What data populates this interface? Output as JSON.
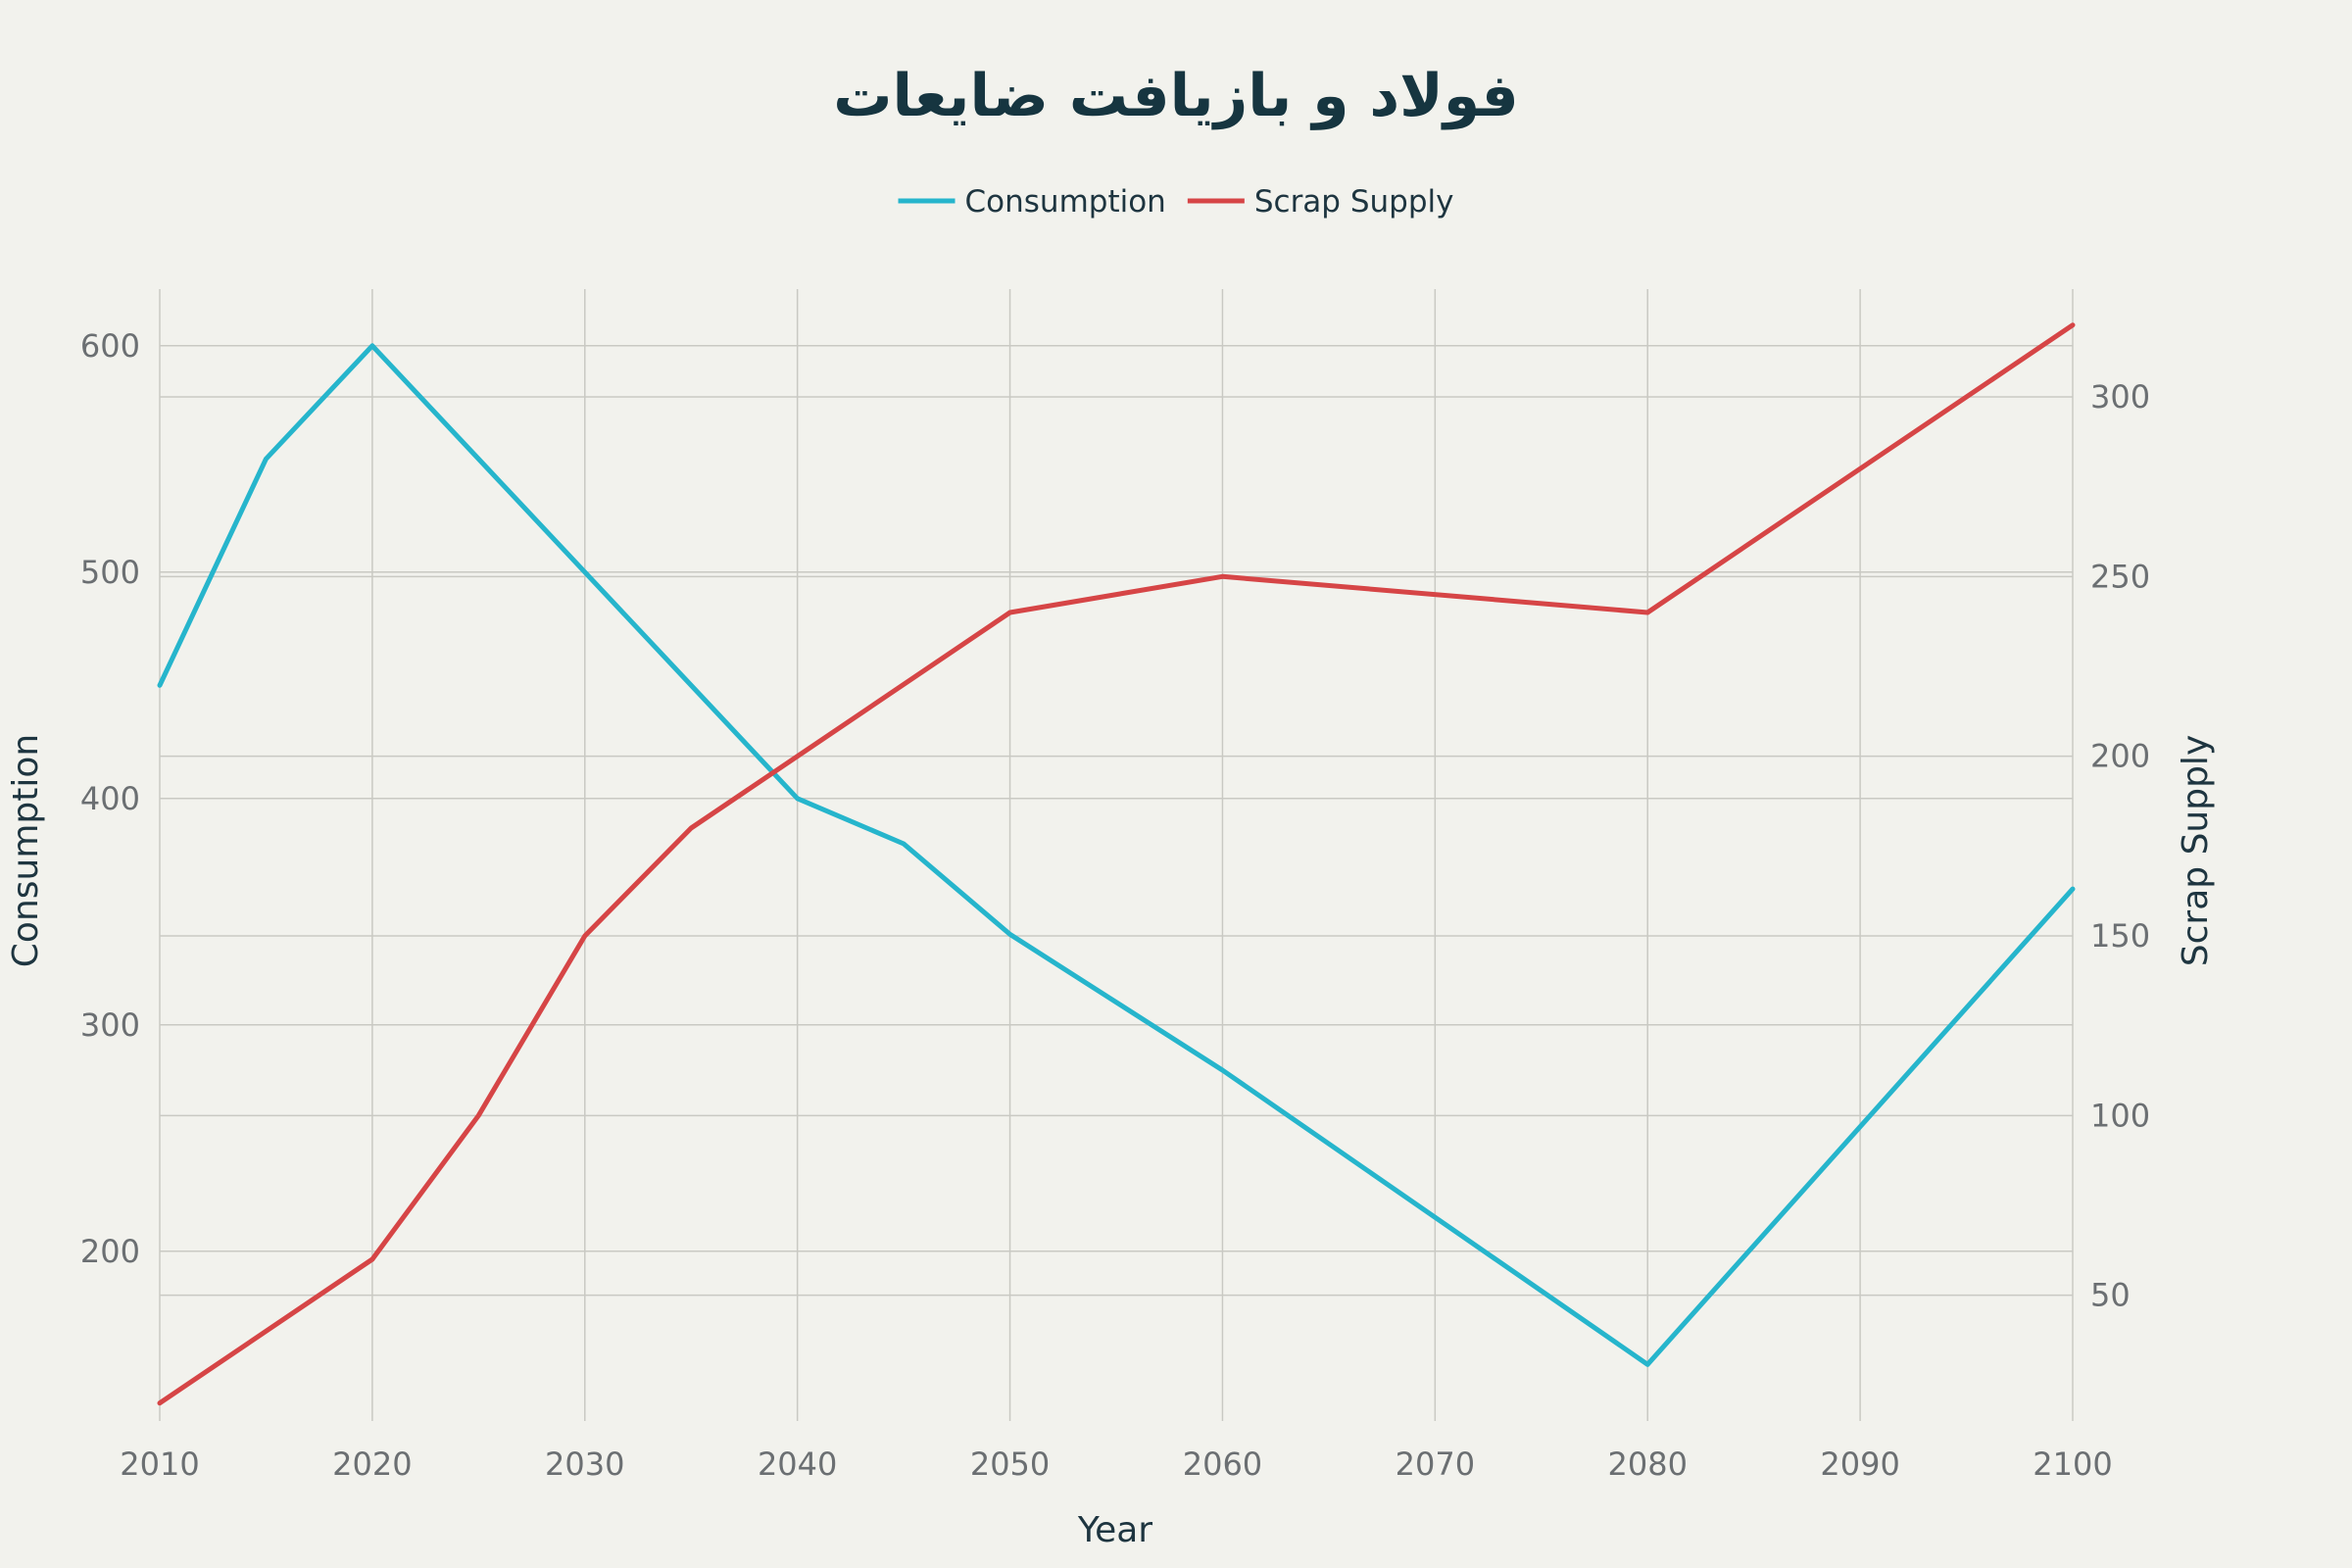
{
  "chart_data": {
    "type": "line",
    "title": "فولاد و بازیافت ضایعات",
    "xlabel": "Year",
    "ylabel": "Consumption",
    "y2label": "Scrap Supply",
    "legend_position": "top-center",
    "grid": true,
    "xlim": [
      2010,
      2100
    ],
    "ylim": [
      125,
      625
    ],
    "y2lim": [
      15,
      330
    ],
    "xticks": [
      2010,
      2020,
      2030,
      2040,
      2050,
      2060,
      2070,
      2080,
      2090,
      2100
    ],
    "yticks": [
      200,
      300,
      400,
      500,
      600
    ],
    "y2ticks": [
      50,
      100,
      150,
      200,
      250,
      300
    ],
    "series": [
      {
        "name": "Consumption",
        "axis": "left",
        "color": "#26b5cc",
        "x": [
          2010,
          2015,
          2020,
          2030,
          2040,
          2045,
          2050,
          2060,
          2080,
          2100
        ],
        "values": [
          450,
          550,
          600,
          500,
          400,
          380,
          340,
          280,
          150,
          360
        ]
      },
      {
        "name": "Scrap Supply",
        "axis": "right",
        "color": "#d64546",
        "x": [
          2010,
          2020,
          2025,
          2030,
          2035,
          2040,
          2050,
          2060,
          2080,
          2090,
          2100
        ],
        "values": [
          20,
          60,
          100,
          150,
          180,
          200,
          240,
          250,
          240,
          280,
          320
        ]
      }
    ]
  }
}
